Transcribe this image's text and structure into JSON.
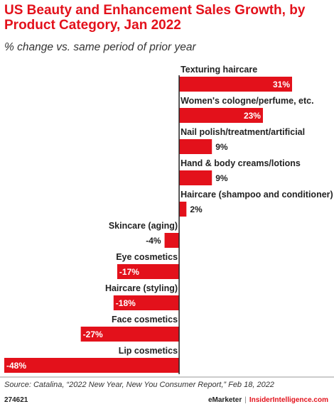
{
  "header": {
    "title": "US Beauty and Enhancement Sales Growth, by Product Category, Jan 2022",
    "subtitle": "% change vs. same period of prior year"
  },
  "footer": {
    "source": "Source: Catalina, “2022 New Year, New You Consumer Report,” Feb 18, 2022",
    "chart_id": "274621",
    "brand_left": "eMarketer",
    "separator": "|",
    "brand_right": "InsiderIntelligence.com"
  },
  "colors": {
    "bar": "#e3111b",
    "title": "#e3111b",
    "axis": "#222222",
    "label_inside": "#ffffff",
    "label_outside": "#222222"
  },
  "chart_data": {
    "type": "bar",
    "orientation": "horizontal",
    "title": "US Beauty and Enhancement Sales Growth, by Product Category, Jan 2022",
    "subtitle": "% change vs. same period of prior year",
    "categories": [
      "Texturing haircare",
      "Women's cologne/perfume, etc.",
      "Nail polish/treatment/artificial",
      "Hand & body creams/lotions",
      "Haircare (shampoo and conditioner)",
      "Skincare (aging)",
      "Eye cosmetics",
      "Haircare (styling)",
      "Face cosmetics",
      "Lip cosmetics"
    ],
    "values": [
      31,
      23,
      9,
      9,
      2,
      -4,
      -17,
      -18,
      -27,
      -48
    ],
    "value_labels": [
      "31%",
      "23%",
      "9%",
      "9%",
      "2%",
      "-4%",
      "-17%",
      "-18%",
      "-27%",
      "-48%"
    ],
    "unit": "%",
    "xlim": [
      -48,
      31
    ],
    "grid": false,
    "legend": "none"
  }
}
